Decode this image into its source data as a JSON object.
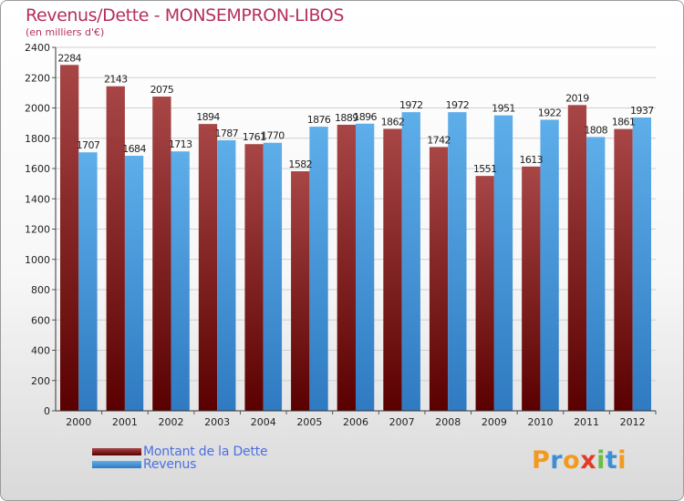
{
  "title": "Revenus/Dette - MONSEMPRON-LIBOS",
  "subtitle": "(en milliers d'€)",
  "colors": {
    "dette_dark": "#5a0000",
    "dette_light": "#a84646",
    "revenus_dark": "#2f7ac1",
    "revenus_light": "#5eaeea",
    "title": "#b5305a",
    "legend_text": "#4c6fe0"
  },
  "legend": {
    "dette_label": "Montant de la Dette",
    "revenus_label": "Revenus"
  },
  "logo": {
    "letters": [
      "P",
      "r",
      "o",
      "x",
      "i",
      "t",
      "i"
    ],
    "letter_colors": [
      "#f39a1e",
      "#3c8fd4",
      "#f39a1e",
      "#e53a26",
      "#6abd45",
      "#3c8fd4",
      "#f39a1e"
    ]
  },
  "chart_data": {
    "type": "bar",
    "categories": [
      "2000",
      "2001",
      "2002",
      "2003",
      "2004",
      "2005",
      "2006",
      "2007",
      "2008",
      "2009",
      "2010",
      "2011",
      "2012"
    ],
    "series": [
      {
        "name": "Montant de la Dette",
        "values": [
          2284,
          2143,
          2075,
          1894,
          1761,
          1582,
          1889,
          1862,
          1742,
          1551,
          1613,
          2019,
          1861
        ]
      },
      {
        "name": "Revenus",
        "values": [
          1707,
          1684,
          1713,
          1787,
          1770,
          1876,
          1896,
          1972,
          1972,
          1951,
          1922,
          1808,
          1937
        ]
      }
    ],
    "ylim": [
      0,
      2400
    ],
    "yticks": [
      0,
      200,
      400,
      600,
      800,
      1000,
      1200,
      1400,
      1600,
      1800,
      2000,
      2200,
      2400
    ],
    "grid": true,
    "legend_position": "bottom-left"
  }
}
